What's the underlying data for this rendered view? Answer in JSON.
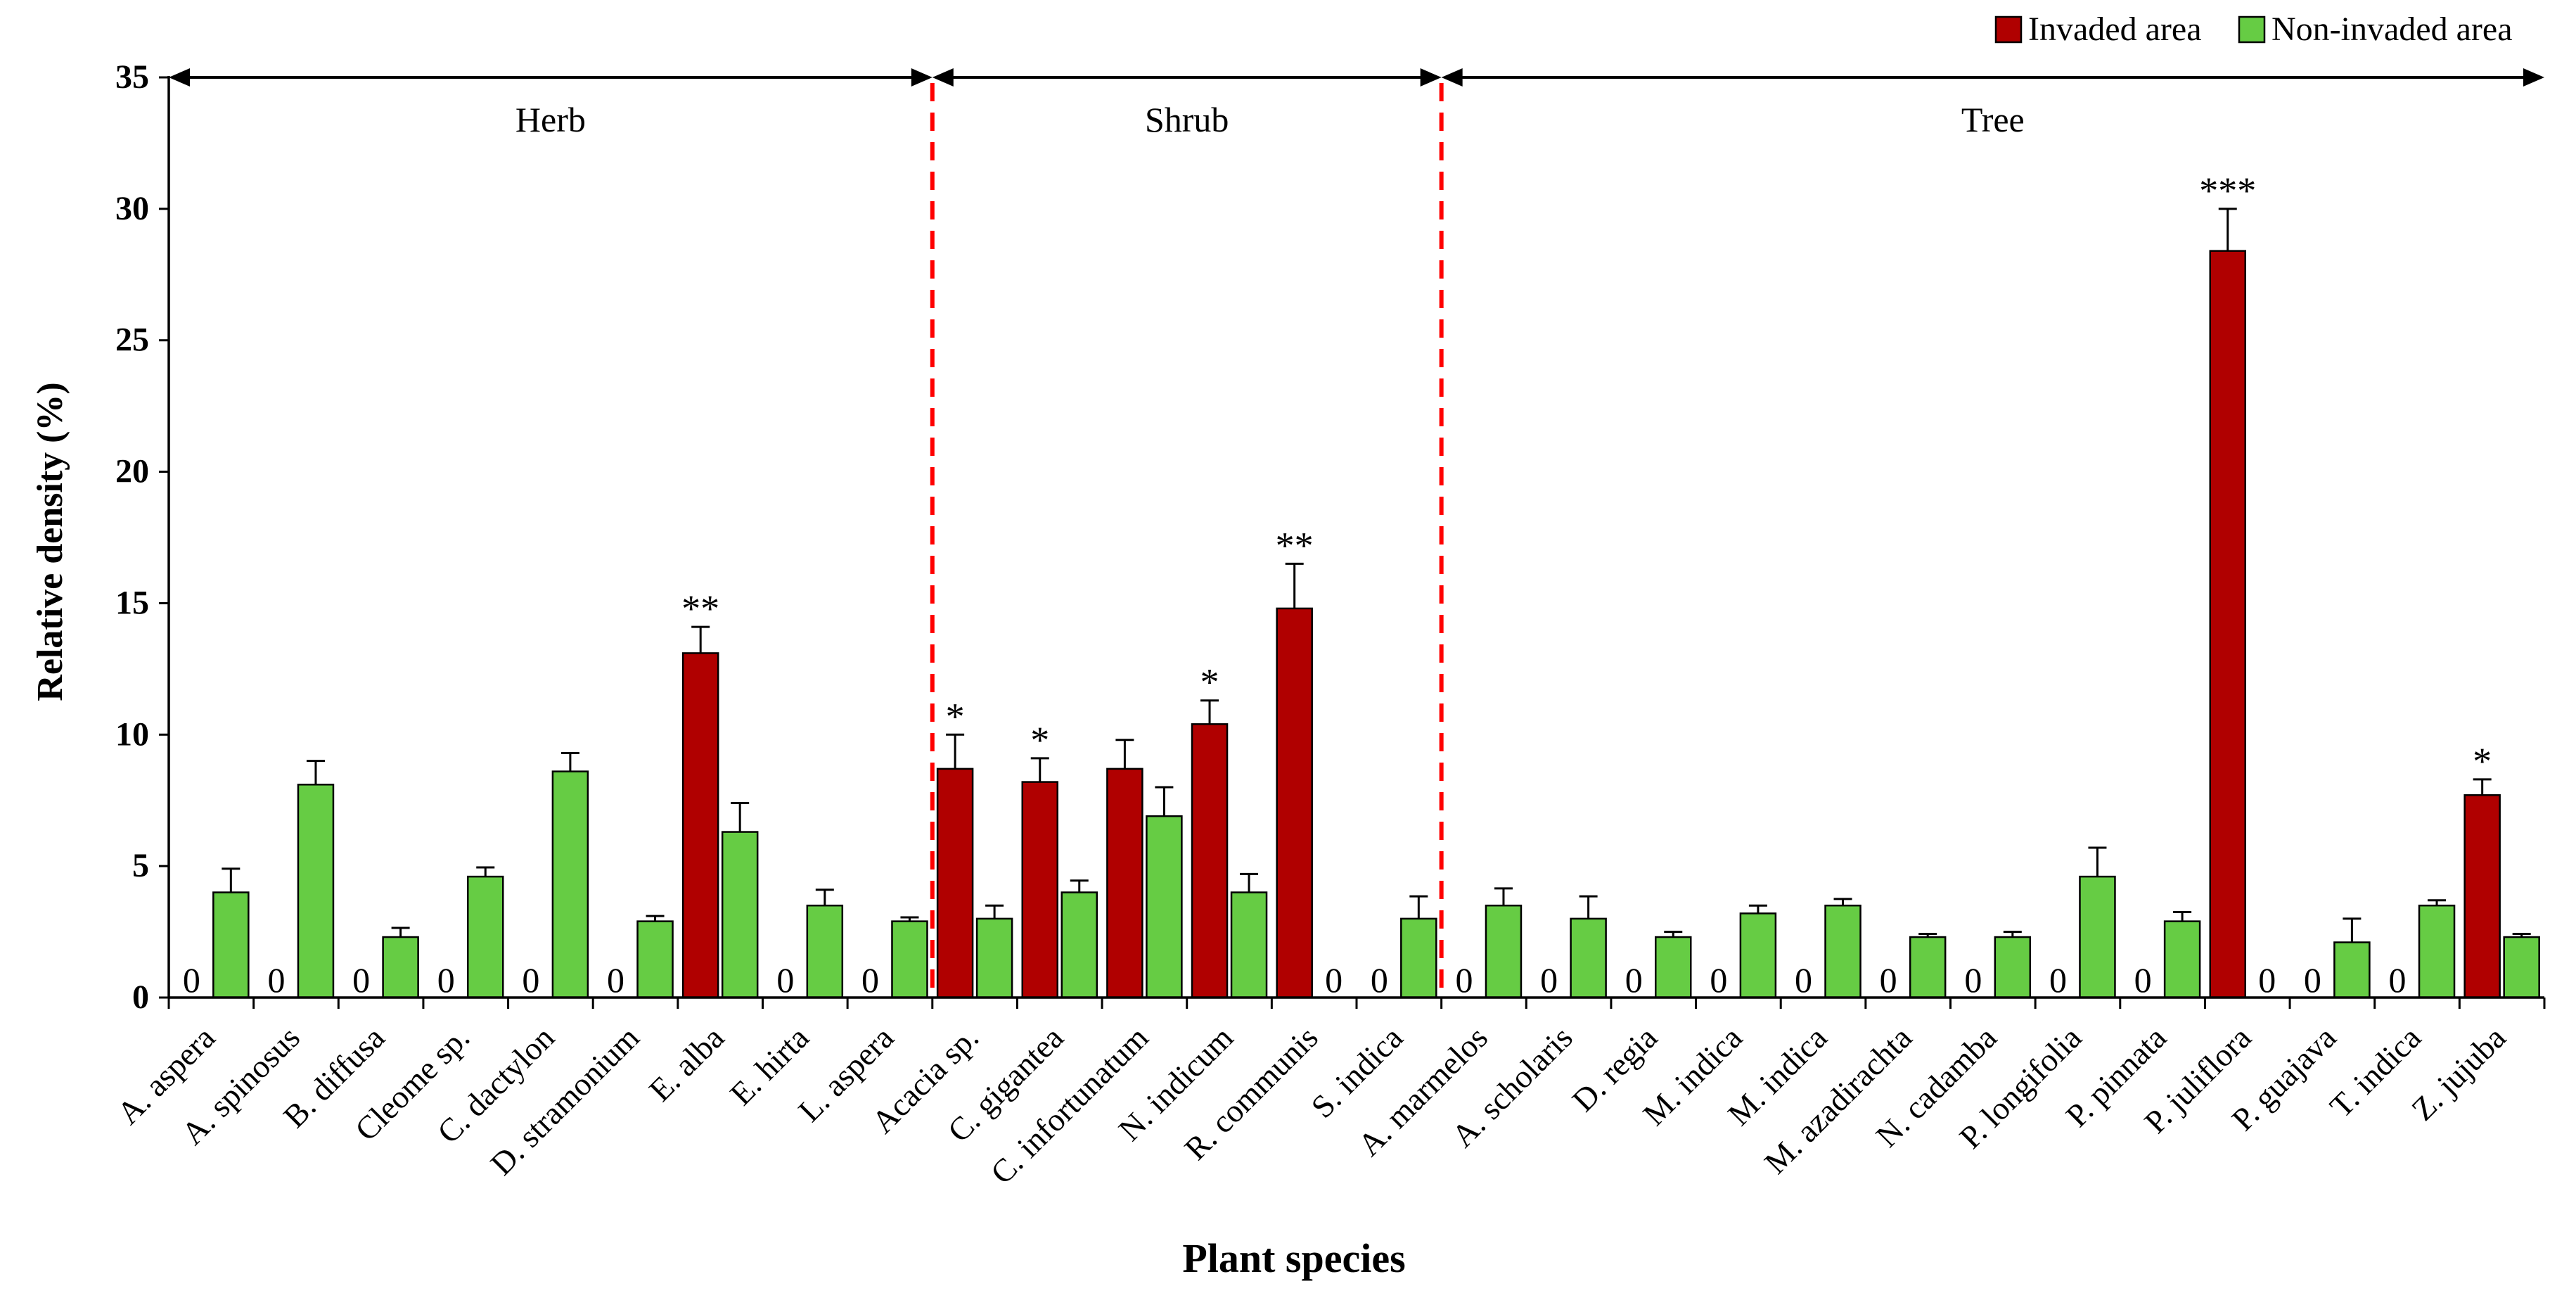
{
  "chart_data": {
    "type": "bar",
    "xlabel": "Plant species",
    "ylabel": "Relative density (%)",
    "ylim": [
      0,
      35
    ],
    "yticks": [
      "0",
      "5",
      "10",
      "15",
      "20",
      "25",
      "30",
      "35"
    ],
    "legend": {
      "position": "top-right",
      "entries": [
        {
          "name": "Invaded area",
          "color": "#B00000"
        },
        {
          "name": "Non-invaded area",
          "color": "#66CC44"
        }
      ]
    },
    "groups": [
      {
        "name": "Herb",
        "from": 0,
        "to": 8
      },
      {
        "name": "Shrub",
        "from": 9,
        "to": 14
      },
      {
        "name": "Tree",
        "from": 15,
        "to": 27
      }
    ],
    "categories": [
      "A. aspera",
      "A. spinosus",
      "B. diffusa",
      "Cleome sp.",
      "C. dactylon",
      "D. stramonium",
      "E. alba",
      "E. hirta",
      "L. aspera",
      "Acacia sp.",
      "C. gigantea",
      "C. infortunatum",
      "N. indicum",
      "R. communis",
      "S. indica",
      "A. marmelos",
      "A. scholaris",
      "D. regia",
      "M. indica",
      "M. indica",
      "M. azadirachta",
      "N. cadamba",
      "P. longifolia",
      "P. pinnata",
      "P. juliflora",
      "P. guajava",
      "T. indica",
      "Z. jujuba"
    ],
    "series": [
      {
        "name": "Invaded area",
        "values": [
          0,
          0,
          0,
          0,
          0,
          0,
          13.1,
          0,
          0,
          8.7,
          8.2,
          8.7,
          10.4,
          14.8,
          0,
          0,
          0,
          0,
          0,
          0,
          0,
          0,
          0,
          0,
          28.4,
          0,
          0,
          7.7
        ],
        "errors": [
          0,
          0,
          0,
          0,
          0,
          0,
          1.0,
          0,
          0,
          1.3,
          0.9,
          1.1,
          0.9,
          1.7,
          0,
          0,
          0,
          0,
          0,
          0,
          0,
          0,
          0,
          0,
          1.6,
          0,
          0,
          0.6
        ],
        "zero_labels": [
          "0",
          "0",
          "0",
          "0",
          "0",
          "0",
          "",
          "0",
          "0",
          "",
          "",
          "",
          "",
          "",
          "0",
          "0",
          "0",
          "0",
          "0",
          "0",
          "0",
          "0",
          "0",
          "0",
          "",
          "0",
          "0",
          ""
        ],
        "significance": [
          "",
          "",
          "",
          "",
          "",
          "",
          "**",
          "",
          "",
          "*",
          "*",
          "",
          "*",
          "**",
          "",
          "",
          "",
          "",
          "",
          "",
          "",
          "",
          "",
          "",
          "***",
          "",
          "",
          "*"
        ]
      },
      {
        "name": "Non-invaded area",
        "values": [
          4.0,
          8.1,
          2.3,
          4.6,
          8.6,
          2.9,
          6.3,
          3.5,
          2.9,
          3.0,
          4.0,
          6.9,
          4.0,
          0,
          3.0,
          3.5,
          3.0,
          2.3,
          3.2,
          3.5,
          2.3,
          2.3,
          4.6,
          2.9,
          0,
          2.1,
          3.5,
          2.3
        ],
        "errors": [
          0.9,
          0.9,
          0.35,
          0.35,
          0.7,
          0.2,
          1.1,
          0.6,
          0.15,
          0.5,
          0.45,
          1.1,
          0.7,
          0,
          0.85,
          0.65,
          0.85,
          0.2,
          0.3,
          0.25,
          0.12,
          0.2,
          1.1,
          0.35,
          0,
          0.9,
          0.2,
          0.12
        ],
        "zero_labels": [
          "",
          "",
          "",
          "",
          "",
          "",
          "",
          "",
          "",
          "",
          "",
          "",
          "",
          "0",
          "",
          "",
          "",
          "",
          "",
          "",
          "",
          "",
          "",
          "",
          "0",
          "",
          "",
          ""
        ]
      }
    ]
  }
}
